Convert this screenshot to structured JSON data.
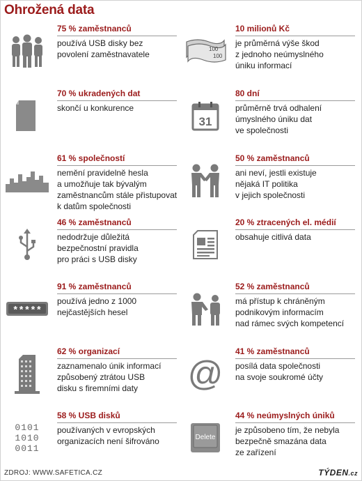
{
  "title": "Ohrožená data",
  "footer": {
    "source": "ZDROJ: WWW.SAFETICA.CZ",
    "brand": "TÝDEN",
    "brand_suffix": ".cz"
  },
  "icon_color": "#7a7a7a",
  "accent_color": "#9b1b1b",
  "items": [
    {
      "icon": "people-group-icon",
      "head": "75 % zaměstnanců",
      "desc": "používá USB disky bez\npovolení zaměstnavatele"
    },
    {
      "icon": "banknotes-icon",
      "head": "10 milionů Kč",
      "desc": "je průměrná výše škod\nz jednoho neúmyslného\núniku informací",
      "note_label": "100"
    },
    {
      "icon": "document-icon",
      "head": "70 % ukradených dat",
      "desc": "skončí u konkurence"
    },
    {
      "icon": "calendar-icon",
      "head": "80 dní",
      "desc": "průměrně trvá odhalení\númyslného úniku dat\nve společnosti",
      "calendar_day": "31"
    },
    {
      "icon": "city-skyline-icon",
      "head": "61 % společností",
      "desc": "nemění pravidelně hesla\na umožňuje tak bývalým\nzaměstnancům stále přistupovat\nk datům společnosti"
    },
    {
      "icon": "handshake-icon",
      "head": "50 % zaměstnanců",
      "desc": "ani neví, jestli existuje\nnějaká IT politika\nv jejich společnosti"
    },
    {
      "icon": "usb-icon",
      "head": "46 % zaměstnanců",
      "desc": "nedodržuje důležitá\nbezpečnostní pravidla\npro práci s USB disky"
    },
    {
      "icon": "newspaper-icon",
      "head": "20 % ztracených el. médií",
      "desc": "obsahuje citlivá data"
    },
    {
      "icon": "password-field-icon",
      "head": "91 % zaměstnanců",
      "desc": "používá jedno z 1000\nnejčastějších hesel",
      "password_mask": "*****"
    },
    {
      "icon": "people-meeting-icon",
      "head": "52 % zaměstnanců",
      "desc": "má přístup k chráněným\npodnikovým informacím\nnad rámec svých kompetencí"
    },
    {
      "icon": "office-building-icon",
      "head": "62 % organizací",
      "desc": "zaznamenalo únik informací\nzpůsobený ztrátou USB\ndisku s firemními daty"
    },
    {
      "icon": "at-sign-icon",
      "head": "41 % zaměstnanců",
      "desc": "posílá data společnosti\nna svoje soukromé účty"
    },
    {
      "icon": "binary-code-icon",
      "head": "58 % USB disků",
      "desc": "používaných v evropských\norganizacích není šifrováno",
      "binary_lines": [
        "0101",
        "1010",
        "0011"
      ]
    },
    {
      "icon": "delete-key-icon",
      "head": "44 % neúmyslných úniků",
      "desc": "je způsobeno tím, že nebyla\nbezpečně smazána data\nze zařízení",
      "key_label": "Delete"
    }
  ]
}
